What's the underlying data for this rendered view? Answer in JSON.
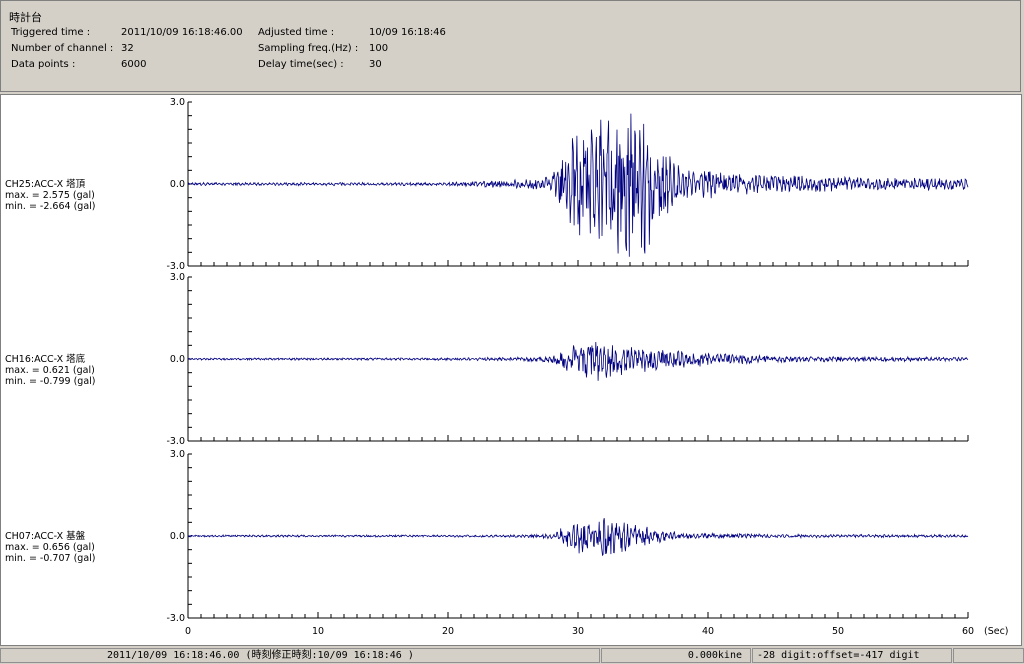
{
  "header": {
    "title": "時計台",
    "fields": [
      {
        "label": "Triggered time :",
        "value": "2011/10/09 16:18:46.00"
      },
      {
        "label": "Number of channel :",
        "value": "32"
      },
      {
        "label": "Data points :",
        "value": "6000"
      },
      {
        "label": "Adjusted time :",
        "value": "10/09 16:18:46"
      },
      {
        "label": "Sampling freq.(Hz) :",
        "value": "100"
      },
      {
        "label": "Delay time(sec) :",
        "value": "30"
      }
    ]
  },
  "chart_data": [
    {
      "type": "line",
      "label": "CH25:ACC-X 塔頂",
      "max_text": "max. = 2.575 (gal)",
      "min_text": "min. = -2.664 (gal)",
      "ylim": [
        -3.0,
        3.0
      ],
      "yticks": [
        "3.0",
        "0.0",
        "-3.0"
      ],
      "xlim": [
        0,
        60
      ],
      "series": [
        {
          "envelope": [
            {
              "x": 0,
              "y": 0.05
            },
            {
              "x": 20,
              "y": 0.06
            },
            {
              "x": 22,
              "y": 0.1
            },
            {
              "x": 25,
              "y": 0.15
            },
            {
              "x": 28,
              "y": 0.3
            },
            {
              "x": 29,
              "y": 1.2
            },
            {
              "x": 30,
              "y": 2.2
            },
            {
              "x": 32,
              "y": 2.6
            },
            {
              "x": 35,
              "y": 2.6
            },
            {
              "x": 36,
              "y": 1.5
            },
            {
              "x": 38,
              "y": 0.6
            },
            {
              "x": 42,
              "y": 0.4
            },
            {
              "x": 50,
              "y": 0.25
            },
            {
              "x": 60,
              "y": 0.2
            }
          ],
          "max": 2.575,
          "min": -2.664
        }
      ]
    },
    {
      "type": "line",
      "label": "CH16:ACC-X 塔底",
      "max_text": "max. = 0.621 (gal)",
      "min_text": "min. = -0.799 (gal)",
      "ylim": [
        -3.0,
        3.0
      ],
      "yticks": [
        "3.0",
        "0.0",
        "-3.0"
      ],
      "xlim": [
        0,
        60
      ],
      "series": [
        {
          "envelope": [
            {
              "x": 0,
              "y": 0.03
            },
            {
              "x": 20,
              "y": 0.04
            },
            {
              "x": 25,
              "y": 0.06
            },
            {
              "x": 28,
              "y": 0.12
            },
            {
              "x": 29,
              "y": 0.35
            },
            {
              "x": 30,
              "y": 0.6
            },
            {
              "x": 31,
              "y": 0.75
            },
            {
              "x": 33,
              "y": 0.5
            },
            {
              "x": 36,
              "y": 0.35
            },
            {
              "x": 40,
              "y": 0.2
            },
            {
              "x": 45,
              "y": 0.1
            },
            {
              "x": 60,
              "y": 0.06
            }
          ],
          "max": 0.621,
          "min": -0.799
        }
      ]
    },
    {
      "type": "line",
      "label": "CH07:ACC-X 基盤",
      "max_text": "max. = 0.656 (gal)",
      "min_text": "min. = -0.707 (gal)",
      "ylim": [
        -3.0,
        3.0
      ],
      "yticks": [
        "3.0",
        "0.0",
        "-3.0"
      ],
      "xlim": [
        0,
        60
      ],
      "series": [
        {
          "envelope": [
            {
              "x": 0,
              "y": 0.03
            },
            {
              "x": 20,
              "y": 0.03
            },
            {
              "x": 26,
              "y": 0.04
            },
            {
              "x": 28,
              "y": 0.08
            },
            {
              "x": 29,
              "y": 0.3
            },
            {
              "x": 30,
              "y": 0.5
            },
            {
              "x": 32,
              "y": 0.6
            },
            {
              "x": 33,
              "y": 0.55
            },
            {
              "x": 35,
              "y": 0.3
            },
            {
              "x": 38,
              "y": 0.1
            },
            {
              "x": 45,
              "y": 0.05
            },
            {
              "x": 60,
              "y": 0.04
            }
          ],
          "max": 0.656,
          "min": -0.707
        }
      ]
    }
  ],
  "xaxis": {
    "ticks": [
      0,
      10,
      20,
      30,
      40,
      50,
      60
    ],
    "unit": "(Sec)"
  },
  "statusbar": {
    "time": "2011/10/09 16:18:46.00  (時刻修正時刻:10/09 16:18:46  )",
    "velocity": "0.000kine",
    "digit": "-28 digit:offset=-417 digit"
  },
  "colors": {
    "trace": "#000080",
    "background": "#ffffff",
    "chrome": "#d4d0c8"
  }
}
